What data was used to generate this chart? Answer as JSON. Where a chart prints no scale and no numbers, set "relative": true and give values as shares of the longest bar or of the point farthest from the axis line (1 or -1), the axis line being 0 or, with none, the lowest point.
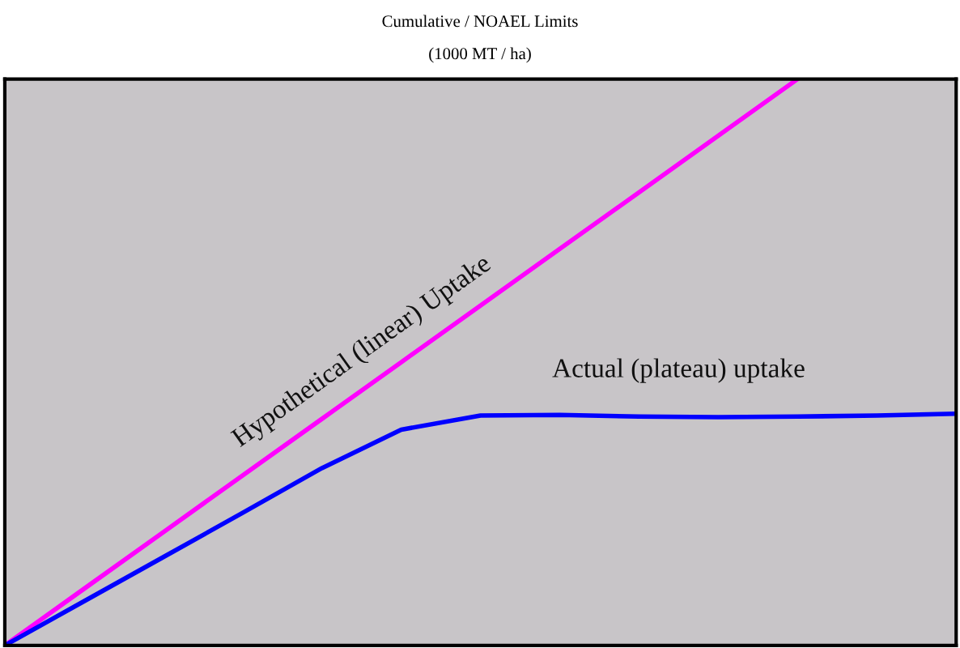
{
  "chart_data": {
    "type": "line",
    "title": "Cumulative / NOAEL Limits",
    "subtitle": "(1000 MT / ha)",
    "relative": true,
    "legend": false,
    "grid": false,
    "marker": "none",
    "line_style": "solid",
    "categories": [
      null,
      null,
      null,
      null,
      null,
      null,
      null,
      null,
      null,
      null,
      null,
      null,
      null
    ],
    "series": [
      {
        "name": "Hypothetical (linear) Uptake",
        "color": "#ff00ff",
        "values": [
          0,
          0.1,
          0.2,
          0.3,
          0.4,
          0.5,
          0.6,
          0.7,
          0.8,
          0.9,
          1.0,
          null,
          null
        ]
      },
      {
        "name": "Actual (plateau) uptake",
        "color": "#0000ff",
        "values": [
          0,
          0.078,
          0.156,
          0.234,
          0.313,
          0.381,
          0.406,
          0.407,
          0.404,
          0.403,
          0.404,
          0.406,
          0.409
        ]
      }
    ]
  }
}
